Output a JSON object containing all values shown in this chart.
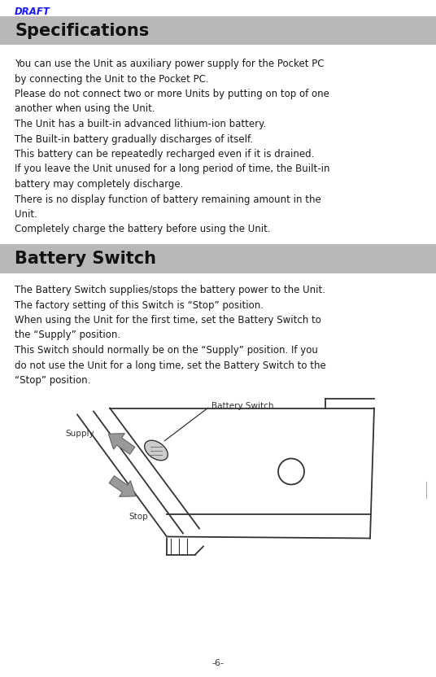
{
  "background_color": "#ffffff",
  "draft_text": "DRAFT",
  "draft_color": "#1a1aff",
  "draft_fontsize": 8.5,
  "header1_text": "Specifications",
  "header1_bg": "#b8b8b8",
  "header1_fontsize": 15,
  "header2_text": "Battery Switch",
  "header2_bg": "#b8b8b8",
  "header2_fontsize": 15,
  "body_fontsize": 8.5,
  "body_color": "#1a1a1a",
  "page_number": "-6-",
  "para1": [
    "You can use the Unit as auxiliary power supply for the Pocket PC",
    "by connecting the Unit to the Pocket PC.",
    "Please do not connect two or more Units by putting on top of one",
    "another when using the Unit.",
    "The Unit has a built-in advanced lithium-ion battery.",
    "The Built-in battery gradually discharges of itself.",
    "This battery can be repeatedly recharged even if it is drained.",
    "If you leave the Unit unused for a long period of time, the Built-in",
    "battery may completely discharge.",
    "There is no display function of battery remaining amount in the",
    "Unit.",
    "Completely charge the battery before using the Unit."
  ],
  "para2": [
    "The Battery Switch supplies/stops the battery power to the Unit.",
    "The factory setting of this Switch is “Stop” position.",
    "When using the Unit for the first time, set the Battery Switch to",
    "the “Supply” position.",
    "This Switch should normally be on the “Supply” position. If you",
    "do not use the Unit for a long time, set the Battery Switch to the",
    "“Stop” position."
  ],
  "edge_color": "#333333",
  "arrow_color": "#999999",
  "switch_color": "#cccccc"
}
